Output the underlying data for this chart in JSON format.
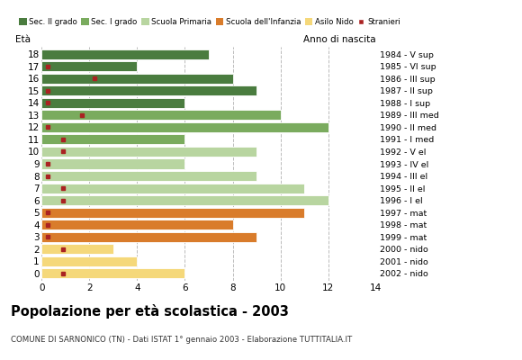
{
  "ages": [
    18,
    17,
    16,
    15,
    14,
    13,
    12,
    11,
    10,
    9,
    8,
    7,
    6,
    5,
    4,
    3,
    2,
    1,
    0
  ],
  "years": [
    "1984 - V sup",
    "1985 - VI sup",
    "1986 - III sup",
    "1987 - II sup",
    "1988 - I sup",
    "1989 - III med",
    "1990 - II med",
    "1991 - I med",
    "1992 - V el",
    "1993 - IV el",
    "1994 - III el",
    "1995 - II el",
    "1996 - I el",
    "1997 - mat",
    "1998 - mat",
    "1999 - mat",
    "2000 - nido",
    "2001 - nido",
    "2002 - nido"
  ],
  "bar_values": [
    7,
    4,
    8,
    9,
    6,
    10,
    12,
    6,
    9,
    6,
    9,
    11,
    12,
    11,
    8,
    9,
    3,
    4,
    6
  ],
  "bar_colors": [
    "#4a7c3f",
    "#4a7c3f",
    "#4a7c3f",
    "#4a7c3f",
    "#4a7c3f",
    "#7aab5e",
    "#7aab5e",
    "#7aab5e",
    "#b8d5a0",
    "#b8d5a0",
    "#b8d5a0",
    "#b8d5a0",
    "#b8d5a0",
    "#d97c2b",
    "#d97c2b",
    "#d97c2b",
    "#f5d87a",
    "#f5d87a",
    "#f5d87a"
  ],
  "stranieri_x": [
    null,
    0.25,
    2.2,
    0.25,
    0.25,
    1.7,
    0.25,
    0.9,
    0.9,
    0.25,
    0.25,
    0.9,
    0.9,
    0.25,
    0.25,
    0.25,
    0.9,
    null,
    0.9
  ],
  "legend_labels": [
    "Sec. II grado",
    "Sec. I grado",
    "Scuola Primaria",
    "Scuola dell'Infanzia",
    "Asilo Nido",
    "Stranieri"
  ],
  "legend_colors": [
    "#4a7c3f",
    "#7aab5e",
    "#b8d5a0",
    "#d97c2b",
    "#f5d87a",
    "#aa2222"
  ],
  "title": "Popolazione per età scolastica - 2003",
  "subtitle": "COMUNE DI SARNONICO (TN) - Dati ISTAT 1° gennaio 2003 - Elaborazione TUTTITALIA.IT",
  "ylabel": "Età",
  "ylabel_right": "Anno di nascita",
  "xlim": [
    0,
    14
  ],
  "xticks": [
    0,
    2,
    4,
    6,
    8,
    10,
    12,
    14
  ],
  "bg_color": "#ffffff",
  "grid_color": "#bbbbbb",
  "stranieri_color": "#aa2222"
}
